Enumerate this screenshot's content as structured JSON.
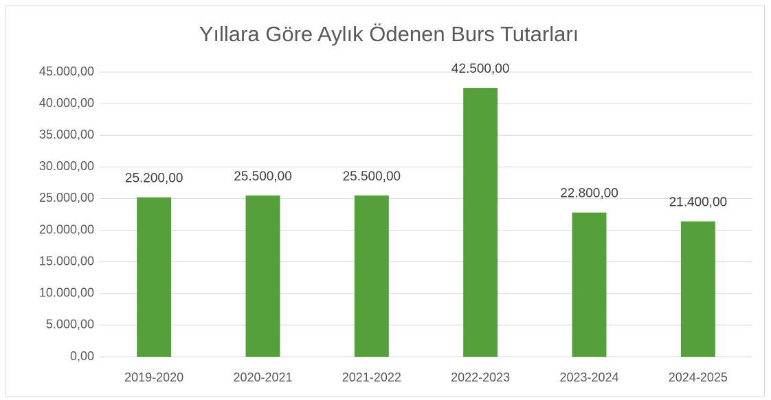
{
  "chart_data": {
    "type": "bar",
    "title": "Yıllara Göre Aylık Ödenen Burs Tutarları",
    "categories": [
      "2019-2020",
      "2020-2021",
      "2021-2022",
      "2022-2023",
      "2023-2024",
      "2024-2025"
    ],
    "values": [
      25200,
      25500,
      25500,
      42500,
      22800,
      21400
    ],
    "value_labels": [
      "25.200,00",
      "25.500,00",
      "25.500,00",
      "42.500,00",
      "22.800,00",
      "21.400,00"
    ],
    "color": "#55a03b",
    "ylim": [
      0,
      45000
    ],
    "yticks": [
      {
        "value": 0,
        "label": "0,00"
      },
      {
        "value": 5000,
        "label": "5.000,00"
      },
      {
        "value": 10000,
        "label": "10.000,00"
      },
      {
        "value": 15000,
        "label": "15.000,00"
      },
      {
        "value": 20000,
        "label": "20.000,00"
      },
      {
        "value": 25000,
        "label": "25.000,00"
      },
      {
        "value": 30000,
        "label": "30.000,00"
      },
      {
        "value": 35000,
        "label": "35.000,00"
      },
      {
        "value": 40000,
        "label": "40.000,00"
      },
      {
        "value": 45000,
        "label": "45.000,00"
      }
    ],
    "grid": true
  }
}
